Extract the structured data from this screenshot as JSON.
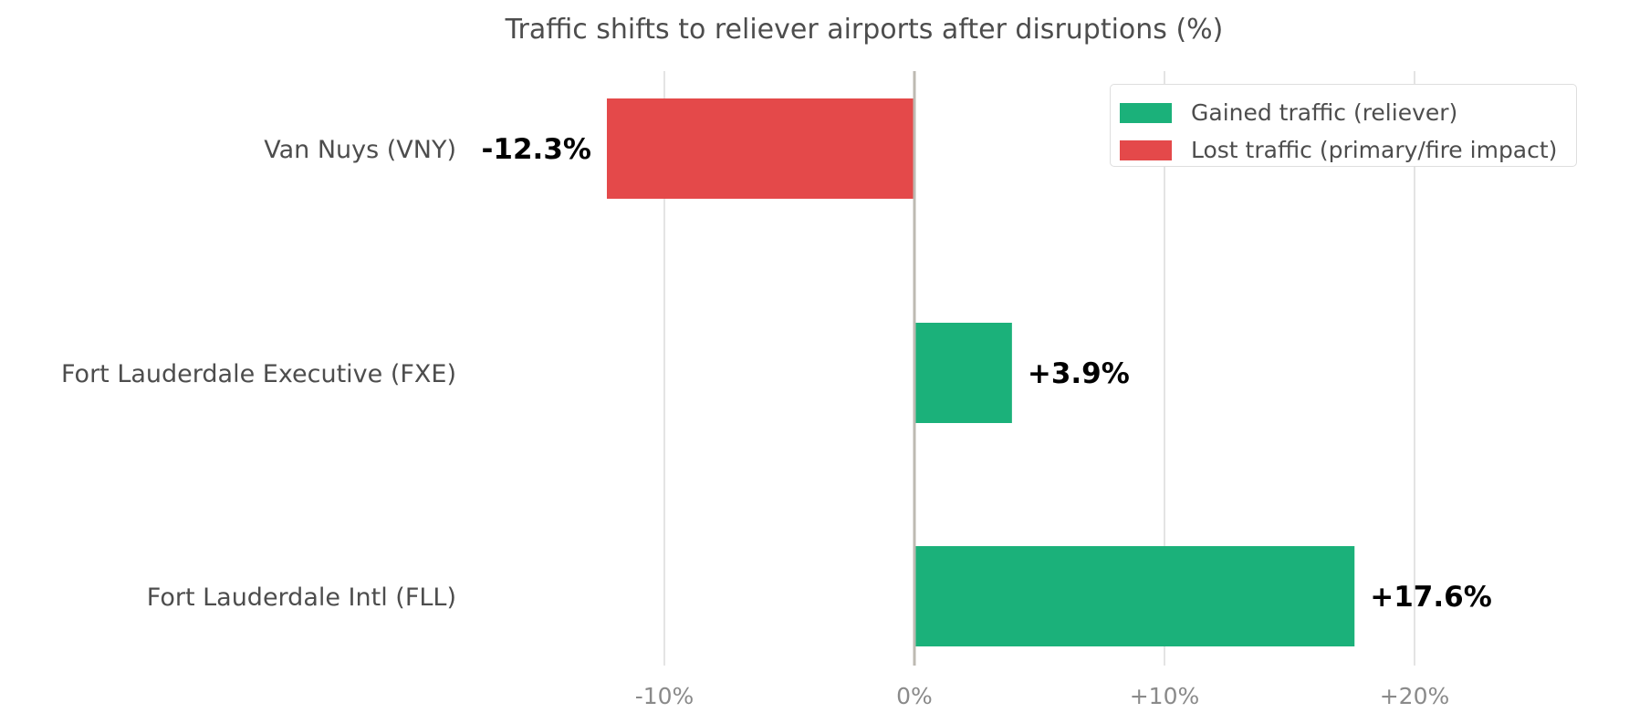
{
  "chart_data": {
    "type": "bar",
    "orientation": "horizontal",
    "title": "Traffic shifts to reliever airports after disruptions (%)",
    "xlabel": "",
    "ylabel": "",
    "categories": [
      "Van Nuys (VNY)",
      "Fort Lauderdale Executive (FXE)",
      "Fort Lauderdale Intl (FLL)"
    ],
    "values": [
      -12.3,
      3.9,
      17.6
    ],
    "value_labels": [
      "-12.3%",
      "+3.9%",
      "+17.6%"
    ],
    "series_assignment": [
      "Lost traffic (primary/fire impact)",
      "Gained traffic (reliever)",
      "Gained traffic (reliever)"
    ],
    "xlim": [
      -18.5,
      28
    ],
    "xticks": [
      -10,
      0,
      10,
      20
    ],
    "xtick_labels": [
      "-10%",
      "0%",
      "+10%",
      "+20%"
    ],
    "grid": "vertical",
    "legend": {
      "placement": "top-right",
      "entries": [
        {
          "label": "Gained traffic (reliever)",
          "color": "#1bb17a"
        },
        {
          "label": "Lost traffic (primary/fire impact)",
          "color": "#e4494a"
        }
      ]
    },
    "colors": {
      "gain": "#1bb17a",
      "loss": "#e4494a",
      "zero_line": "#bdbab2",
      "grid": "#dcdcdc"
    }
  }
}
